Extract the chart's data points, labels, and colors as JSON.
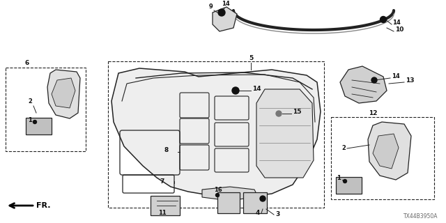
{
  "bg_color": "#ffffff",
  "diagram_code": "TX44B3950A",
  "lc": "#222222",
  "tc": "#111111",
  "figsize": [
    6.4,
    3.2
  ],
  "dpi": 100
}
